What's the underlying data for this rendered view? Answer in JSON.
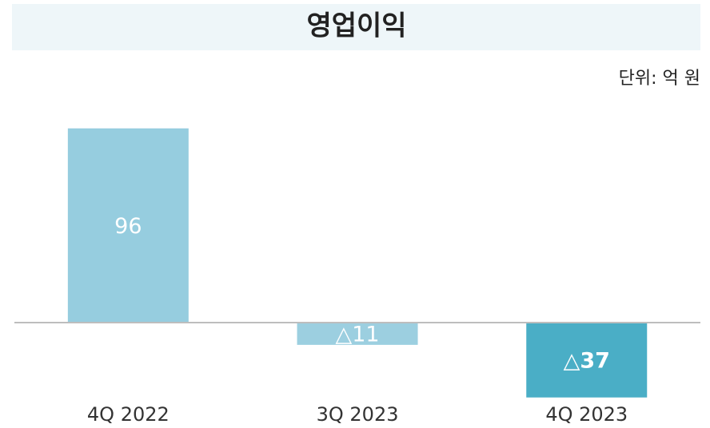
{
  "chart_data": {
    "type": "bar",
    "title": "영업이익",
    "unit_label": "단위: 억 원",
    "categories": [
      "4Q 2022",
      "3Q 2023",
      "4Q 2023"
    ],
    "values": [
      96,
      -11,
      -37
    ],
    "value_labels": [
      "96",
      "△11",
      "△37"
    ],
    "colors": [
      "#96cddf",
      "#9ccfe0",
      "#4aaec6"
    ]
  }
}
